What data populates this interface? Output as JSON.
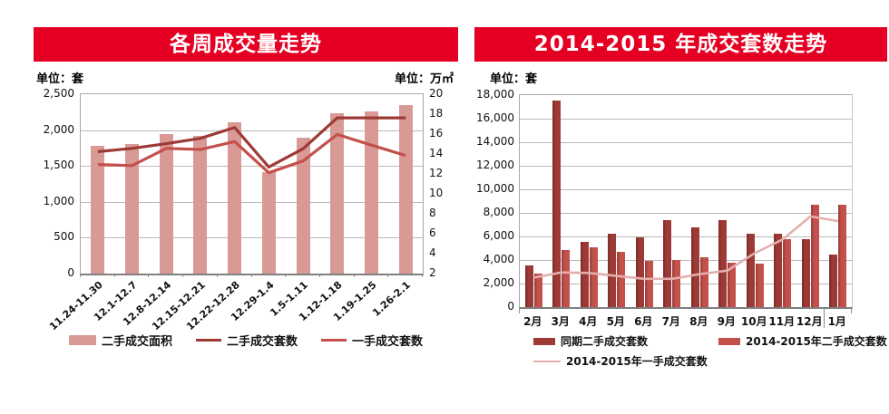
{
  "accent_red": "#E50023",
  "chart_data": [
    {
      "type": "combo-bar-line",
      "title": "各周成交量走势",
      "unit_left": "单位：套",
      "unit_right": "单位：万㎡",
      "y_left": {
        "min": 0,
        "max": 2500,
        "labels": [
          "2,500",
          "2,000",
          "1,500",
          "1,000",
          "500",
          "0"
        ]
      },
      "y_right": {
        "min": 2,
        "max": 20,
        "labels": [
          "20",
          "18",
          "16",
          "14",
          "12",
          "10",
          "8",
          "6",
          "4",
          "2"
        ]
      },
      "grid": true,
      "legend_position": "bottom",
      "categories": [
        "11.24-11.30",
        "12.1-12.7",
        "12.8-12.14",
        "12.15-12.21",
        "12.22-12.28",
        "12.29-1.4",
        "1.5-1.11",
        "1.12-1.18",
        "1.19-1.25",
        "1.26-2.1"
      ],
      "series": [
        {
          "name": "二手成交面积",
          "type": "bar",
          "axis": "right",
          "color": "#D99A96",
          "values": [
            14.8,
            15.0,
            16.0,
            15.8,
            17.2,
            12.2,
            15.6,
            18.1,
            18.3,
            18.9
          ]
        },
        {
          "name": "二手成交套数",
          "type": "line",
          "axis": "left",
          "color": "#9E3A36",
          "values": [
            1700,
            1745,
            1810,
            1885,
            2035,
            1485,
            1740,
            2170,
            2170,
            2170
          ]
        },
        {
          "name": "一手成交套数",
          "type": "line",
          "axis": "left",
          "color": "#C4504B",
          "values": [
            1520,
            1505,
            1745,
            1730,
            1840,
            1405,
            1570,
            1940,
            1790,
            1645
          ]
        }
      ]
    },
    {
      "type": "grouped-bar-line",
      "title": "2014-2015 年成交套数走势",
      "unit_left": "单位：套",
      "y_left": {
        "min": 0,
        "max": 18000,
        "labels": [
          "18,000",
          "16,000",
          "14,000",
          "12,000",
          "10,000",
          "8,000",
          "6,000",
          "4,000",
          "2,000",
          "0"
        ]
      },
      "grid": true,
      "legend_position": "bottom",
      "year_separator_after": "12月",
      "categories": [
        "2月",
        "3月",
        "4月",
        "5月",
        "6月",
        "7月",
        "8月",
        "9月",
        "10月",
        "11月",
        "12月",
        "1月"
      ],
      "series": [
        {
          "name": "同期二手成交套数",
          "type": "bar",
          "color": "#9E3A36",
          "values": [
            3550,
            17550,
            5550,
            6250,
            5950,
            7400,
            6800,
            7400,
            6250,
            6250,
            5800,
            4500
          ]
        },
        {
          "name": "2014-2015年二手成交套数",
          "type": "bar",
          "color": "#C4504B",
          "values": [
            2850,
            4850,
            5100,
            4700,
            3950,
            4000,
            4200,
            3800,
            3700,
            5750,
            8700,
            8700
          ]
        },
        {
          "name": "2014-2015年一手成交套数",
          "type": "line",
          "color": "#E3AFAC",
          "values": [
            2500,
            2950,
            2900,
            2650,
            2400,
            2400,
            2800,
            3100,
            4600,
            5750,
            7700,
            7300
          ]
        }
      ]
    }
  ]
}
